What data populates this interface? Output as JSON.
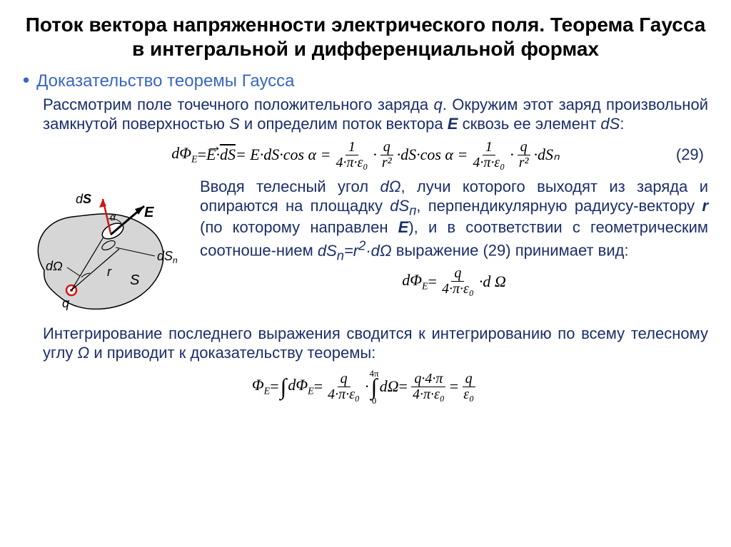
{
  "title": "Поток вектора напряженности электрического поля. Теорема Гаусса в интегральной и дифференциальной формах",
  "subtitle": "Доказательство теоремы Гаусса",
  "para1_html": "Рассмотрим поле точечного положительного заряда <i>q</i>. Окружим этот заряд произвольной замкнутой поверхностью <i>S</i> и определим поток вектора <b><i>E</i></b> сквозь ее элемент <i>dS</i>:",
  "eq29_num": "(29)",
  "eq29": {
    "lhs": "dΦ",
    "lhs_sub": "E",
    "eq1": " = ",
    "EdS_vec": "E⃗·dS",
    "eq2": " = E·dS·cos α = ",
    "frac1_num": "1",
    "frac1_den": "4·π·ε₀",
    "dot1": "·",
    "frac2_num": "q",
    "frac2_den": "r²",
    "tail1": "·dS·cos α = ",
    "frac3_num": "1",
    "frac3_den": "4·π·ε₀",
    "dot2": "·",
    "frac4_num": "q",
    "frac4_den": "r²",
    "tail2": "·dSₙ"
  },
  "diagram": {
    "surface_fill": "#d6d6d6",
    "surface_stroke": "#000000",
    "charge_stroke": "#d01515",
    "ds_vec_color": "#d01515",
    "e_vec_color": "#000000",
    "label_color": "#000000",
    "labels": {
      "dS_vec": "dS",
      "E": "E",
      "alpha": "α",
      "dSn": "dSₙ",
      "dOmega": "dΩ",
      "r": "r",
      "q": "q",
      "S": "S"
    }
  },
  "para2_html": "Вводя телесный угол <i>dΩ</i>, лучи которого выходят из заряда и опираются на площадку <i>dS<sub>п</sub></i>, перпендикулярную радиусу-вектору <b><i>r</i></b> (по которому направлен <b><i>E</i></b>), и в соответствии с геометрическим соотноше-нием <i>dS<sub>n</sub>=r<sup>2</sup>·dΩ</i> выражение (29) принимает вид:",
  "eq30": {
    "lhs": "dΦ",
    "lhs_sub": "E",
    "eq": " = ",
    "frac_num": "q",
    "frac_den": "4·π·ε₀",
    "tail": "·d Ω"
  },
  "para3_html": "Интегрирование последнего выражения сводится к интегрированию по всему телесному углу <i>Ω</i> и приводит к доказательству теоремы:",
  "eq31": {
    "lhs": "Φ",
    "lhs_sub": "E",
    "eq": " = ",
    "int1": "∫",
    "dPhi": "dΦ",
    "dPhi_sub": "E",
    "eq2": " = ",
    "frac1_num": "q",
    "frac1_den": "4·π·ε₀",
    "dot": "·",
    "int2_upper": "4π",
    "int2_lower": "0",
    "dOmega": "dΩ",
    "eq3": " = ",
    "frac2_num": "q·4·π",
    "frac2_den": "4·π·ε₀",
    "eq4": " = ",
    "frac3_num": "q",
    "frac3_den": "ε₀"
  },
  "styling": {
    "title_fontsize": 28,
    "body_fontsize": 22,
    "title_color": "#000000",
    "body_color": "#1a2f6a",
    "accent_color": "#3a66c2",
    "background": "#ffffff"
  }
}
